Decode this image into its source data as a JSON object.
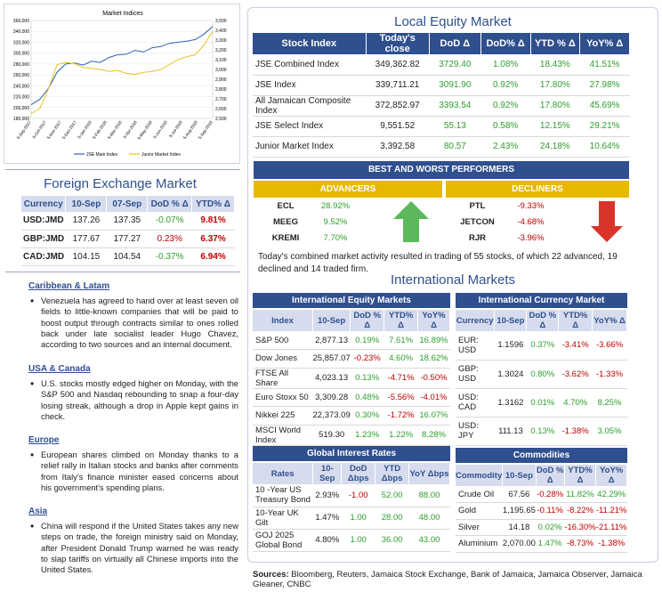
{
  "chart_data": {
    "type": "line",
    "title": "Market Indices",
    "x_tick_labels": [
      "5-Sep-2017",
      "5-Oct-2017",
      "5-Nov-2017",
      "5-Dec-2017",
      "5-Jan-2018",
      "5-Feb-2018",
      "5-Mar-2018",
      "5-Apr-2018",
      "5-May-2018",
      "5-Jun-2018",
      "5-Jul-2018",
      "5-Aug-2018",
      "5-Sep-2018"
    ],
    "y_left_ticks": [
      "360,000",
      "340,000",
      "320,000",
      "300,000",
      "280,000",
      "260,000",
      "240,000",
      "220,000",
      "200,000",
      "180,000"
    ],
    "y_right_ticks": [
      "3,500",
      "3,400",
      "3,300",
      "3,200",
      "3,100",
      "3,000",
      "2,900",
      "2,800",
      "2,700",
      "2,600",
      "2,500"
    ],
    "y_left_range": [
      180000,
      360000
    ],
    "y_right_range": [
      2500,
      3500
    ],
    "legend": [
      "JSE Main Index",
      "Junior Market Index"
    ],
    "series": [
      {
        "name": "JSE Main Index",
        "axis": "left",
        "values": [
          205000,
          215000,
          235000,
          265000,
          280000,
          282000,
          278000,
          285000,
          283000,
          292000,
          297000,
          298000,
          305000,
          302000,
          310000,
          312000,
          318000,
          320000,
          322000,
          325000,
          335000,
          349000
        ]
      },
      {
        "name": "Junior Market Index",
        "axis": "right",
        "values": [
          2550,
          2600,
          2800,
          3050,
          3070,
          3060,
          3020,
          3010,
          3000,
          2980,
          2990,
          2960,
          2950,
          2970,
          2980,
          3000,
          3050,
          3100,
          3130,
          3150,
          3250,
          3390
        ]
      }
    ],
    "colors": {
      "main": "#2f5fb0",
      "junior": "#e8c020"
    }
  },
  "fx": {
    "title": "Foreign Exchange Market",
    "headers": [
      "Currency",
      "10-Sep",
      "07-Sep",
      "DoD % Δ",
      "YTD% Δ"
    ],
    "rows": [
      {
        "cur": "USD:JMD",
        "a": "137.26",
        "b": "137.35",
        "dod": "-0.07%",
        "ytd": "9.81%",
        "dod_c": "grn",
        "ytd_c": "red"
      },
      {
        "cur": "GBP:JMD",
        "a": "177.67",
        "b": "177.27",
        "dod": "0.23%",
        "ytd": "6.37%",
        "dod_c": "red",
        "ytd_c": "red"
      },
      {
        "cur": "CAD:JMD",
        "a": "104.15",
        "b": "104.54",
        "dod": "-0.37%",
        "ytd": "6.94%",
        "dod_c": "grn",
        "ytd_c": "red"
      }
    ]
  },
  "news": [
    {
      "heading": "Caribbean & Latam",
      "text": "Venezuela has agreed to hand over at least seven oil fields to little-known companies that will be paid to boost output through contracts similar to ones rolled back under late socialist leader Hugo Chavez, according to two sources and an internal document."
    },
    {
      "heading": "USA & Canada",
      "text": "U.S. stocks mostly edged higher on Monday, with the S&P 500 and Nasdaq rebounding to snap a four-day losing streak, although a drop in Apple kept gains in check."
    },
    {
      "heading": "Europe",
      "text": "European shares climbed on Monday thanks to a relief rally in Italian stocks and banks after comments from Italy's finance minister eased concerns about his government's spending plans."
    },
    {
      "heading": "Asia",
      "text": "China will respond if the United States takes any new steps on trade, the foreign ministry said on Monday, after President Donald Trump warned he was ready to slap tariffs on virtually all Chinese imports into the United States."
    }
  ],
  "local": {
    "title": "Local Equity Market",
    "headers": [
      "Stock Index",
      "Today's close",
      "DoD  Δ",
      "DoD% Δ",
      "YTD % Δ",
      "YoY% Δ"
    ],
    "rows": [
      {
        "name": "JSE Combined Index",
        "close": "349,362.82",
        "dod": "3729.40",
        "dodp": "1.08%",
        "ytd": "18.43%",
        "yoy": "41.51%"
      },
      {
        "name": "JSE Index",
        "close": "339,711.21",
        "dod": "3091.90",
        "dodp": "0.92%",
        "ytd": "17.80%",
        "yoy": "27.98%"
      },
      {
        "name": "All Jamaican Composite Index",
        "close": "372,852.97",
        "dod": "3393.54",
        "dodp": "0.92%",
        "ytd": "17.80%",
        "yoy": "45.69%"
      },
      {
        "name": "JSE Select Index",
        "close": "9,551.52",
        "dod": "55.13",
        "dodp": "0.58%",
        "ytd": "12.15%",
        "yoy": "29.21%"
      },
      {
        "name": "Junior Market Index",
        "close": "3,392.58",
        "dod": "80.57",
        "dodp": "2.43%",
        "ytd": "24.18%",
        "yoy": "10.64%"
      }
    ]
  },
  "bw": {
    "title": "BEST AND WORST PERFORMERS",
    "adv_label": "ADVANCERS",
    "dec_label": "DECLINERS",
    "advancers": [
      {
        "sym": "ECL",
        "pct": "28.92%"
      },
      {
        "sym": "MEEG",
        "pct": "9.52%"
      },
      {
        "sym": "KREMI",
        "pct": "7.70%"
      }
    ],
    "decliners": [
      {
        "sym": "PTL",
        "pct": "-9.33%"
      },
      {
        "sym": "JETCON",
        "pct": "-4.68%"
      },
      {
        "sym": "RJR",
        "pct": "-3.96%"
      }
    ]
  },
  "summary": "Today's combined market activity resulted in trading of 55 stocks, of which 22 advanced, 19 declined and 14 traded firm.",
  "intl_title": "International Markets",
  "ieq": {
    "title": "International Equity Markets",
    "headers": [
      "Index",
      "10-Sep",
      "DoD % Δ",
      "YTD% Δ",
      "YoY% Δ"
    ],
    "rows": [
      {
        "n": "S&P 500",
        "v": "2,877.13",
        "d": "0.19%",
        "y": "7.61%",
        "yy": "16.89%",
        "dc": "grn",
        "yc": "grn",
        "yyc": "grn"
      },
      {
        "n": "Dow Jones",
        "v": "25,857.07",
        "d": "-0.23%",
        "y": "4.60%",
        "yy": "18.62%",
        "dc": "red",
        "yc": "grn",
        "yyc": "grn"
      },
      {
        "n": "FTSE All Share",
        "v": "4,023.13",
        "d": "0.13%",
        "y": "-4.71%",
        "yy": "-0.50%",
        "dc": "grn",
        "yc": "red",
        "yyc": "red"
      },
      {
        "n": "Euro Stoxx 50",
        "v": "3,309.28",
        "d": "0.48%",
        "y": "-5.56%",
        "yy": "-4.01%",
        "dc": "grn",
        "yc": "red",
        "yyc": "red"
      },
      {
        "n": "Nikkei 225",
        "v": "22,373.09",
        "d": "0.30%",
        "y": "-1.72%",
        "yy": "16.07%",
        "dc": "grn",
        "yc": "red",
        "yyc": "grn"
      },
      {
        "n": "MSCI World Index",
        "v": "519.30",
        "d": "1.23%",
        "y": "1.22%",
        "yy": "8.28%",
        "dc": "grn",
        "yc": "grn",
        "yyc": "grn"
      }
    ]
  },
  "icur": {
    "title": "International Currency Market",
    "headers": [
      "Currency",
      "10-Sep",
      "DoD % Δ",
      "YTD% Δ",
      "YoY% Δ"
    ],
    "rows": [
      {
        "n": "EUR: USD",
        "v": "1.1596",
        "d": "0.37%",
        "y": "-3.41%",
        "yy": "-3.66%",
        "dc": "grn",
        "yc": "red",
        "yyc": "red"
      },
      {
        "n": "GBP: USD",
        "v": "1.3024",
        "d": "0.80%",
        "y": "-3.62%",
        "yy": "-1.33%",
        "dc": "grn",
        "yc": "red",
        "yyc": "red"
      },
      {
        "n": "USD: CAD",
        "v": "1.3162",
        "d": "0.01%",
        "y": "4.70%",
        "yy": "8.25%",
        "dc": "grn",
        "yc": "grn",
        "yyc": "grn"
      },
      {
        "n": "USD: JPY",
        "v": "111.13",
        "d": "0.13%",
        "y": "-1.38%",
        "yy": "3.05%",
        "dc": "grn",
        "yc": "red",
        "yyc": "grn"
      }
    ]
  },
  "rates": {
    "title": "Global Interest Rates",
    "headers": [
      "Rates",
      "10-Sep",
      "DoD Δbps",
      "YTD Δbps",
      "YoY Δbps"
    ],
    "rows": [
      {
        "n": "10 -Year US Treasury Bond",
        "v": "2.93%",
        "d": "-1.00",
        "y": "52.00",
        "yy": "88.00",
        "dc": "red",
        "yc": "grn",
        "yyc": "grn"
      },
      {
        "n": "10-Year UK Gilt",
        "v": "1.47%",
        "d": "1.00",
        "y": "28.00",
        "yy": "48.00",
        "dc": "grn",
        "yc": "grn",
        "yyc": "grn"
      },
      {
        "n": "GOJ 2025 Global Bond",
        "v": "4.80%",
        "d": "1.00",
        "y": "36.00",
        "yy": "43.00",
        "dc": "grn",
        "yc": "grn",
        "yyc": "grn"
      }
    ]
  },
  "comm": {
    "title": "Commodities",
    "headers": [
      "Commodity",
      "10-Sep",
      "DoD % Δ",
      "YTD% Δ",
      "YoY% Δ"
    ],
    "rows": [
      {
        "n": "Crude Oil",
        "v": "67.56",
        "d": "-0.28%",
        "y": "11.82%",
        "yy": "42.29%",
        "dc": "red",
        "yc": "grn",
        "yyc": "grn"
      },
      {
        "n": "Gold",
        "v": "1,195.65",
        "d": "-0.11%",
        "y": "-8.22%",
        "yy": "-11.21%",
        "dc": "red",
        "yc": "red",
        "yyc": "red"
      },
      {
        "n": "Silver",
        "v": "14.18",
        "d": "0.02%",
        "y": "-16.30%",
        "yy": "-21.11%",
        "dc": "grn",
        "yc": "red",
        "yyc": "red"
      },
      {
        "n": "Aluminium",
        "v": "2,070.00",
        "d": "1.47%",
        "y": "-8.73%",
        "yy": "-1.38%",
        "dc": "grn",
        "yc": "red",
        "yyc": "red"
      }
    ]
  },
  "sources_label": "Sources:",
  "sources_text": " Bloomberg, Reuters, Jamaica Stock Exchange, Bank of Jamaica, Jamaica Observer, Jamaica Gleaner, CNBC"
}
